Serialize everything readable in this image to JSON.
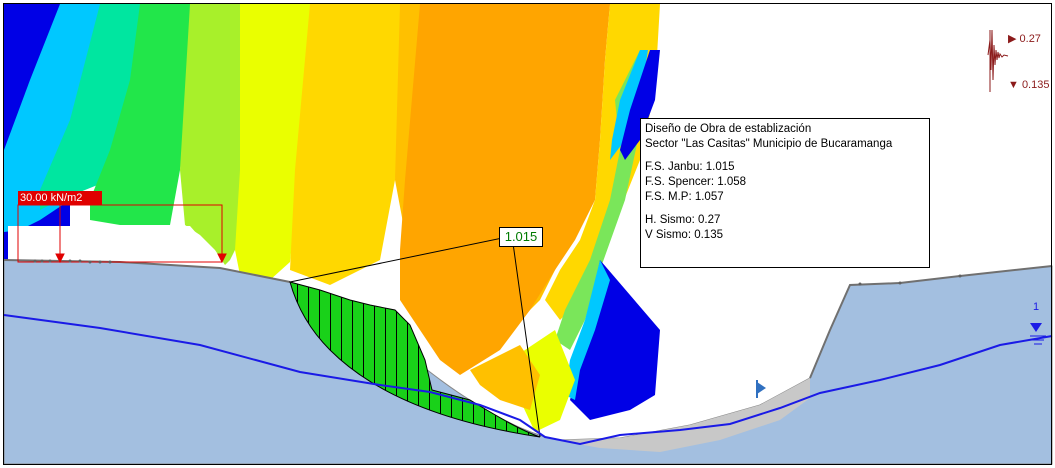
{
  "info_box": {
    "title_line1": "Diseño de Obra de establización",
    "title_line2": "Sector \"Las Casitas\" Municipio de Bucaramanga",
    "fs_janbu": "F.S. Janbu: 1.015",
    "fs_spencer": "F.S. Spencer: 1.058",
    "fs_mp": "F.S. M.P: 1.057",
    "h_sismo": "H. Sismo: 0.27",
    "v_sismo": "V Sismo: 0.135"
  },
  "slip_surface_fs": "1.015",
  "distributed_load": "30.00 kN/m2",
  "seismic": {
    "horizontal": "▶ 0.27",
    "vertical": "▼ 0.135"
  },
  "water_table_marker": "1",
  "colors": {
    "soil": "#a3bfe0",
    "slip_mass": "#19d119",
    "water_line": "#1a1ae6",
    "load": "#e00000",
    "seismic": "#8b1a1a",
    "fs_text": "#007a00",
    "contour_low": "#0000e6",
    "contour_mid": "#eaff00",
    "contour_high": "#ffa500"
  }
}
